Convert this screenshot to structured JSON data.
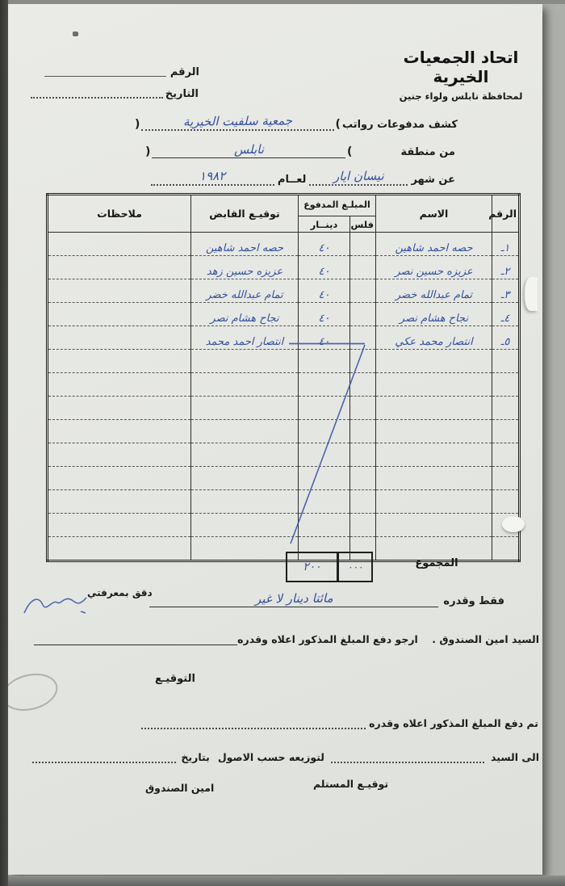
{
  "header": {
    "org_name": "اتحاد الجمعيات الخيرية",
    "org_region": "لمحافظة نابلس ولواء جنين",
    "number_label": "الرقم",
    "date_label": "التاريخ"
  },
  "form": {
    "payments_label": "كشف مدفوعات رواتب",
    "paren_open": "(",
    "paren_close": ")",
    "society_value": "جمعية سلفيت الخيرية",
    "area_label": "من منطقة",
    "area_value": "نابلس",
    "month_label": "عن شهر",
    "month_value": "نيسان ايار",
    "year_label": "لعــام",
    "year_value": "١٩٨٢"
  },
  "table": {
    "col_num": "الرقم",
    "col_name": "الاسم",
    "col_amount": "المبلـغ المدفوع",
    "col_fils": "فلس",
    "col_dinar": "دينــار",
    "col_signature": "توقيـع القابض",
    "col_notes": "ملاحظات",
    "rows": [
      {
        "num": "١ـ",
        "name": "حصه احمد شاهين",
        "fils": "",
        "dinar": "٤٠",
        "signature": "حصه احمد شاهين",
        "notes": ""
      },
      {
        "num": "٢ـ",
        "name": "عزيزه حسين نصر",
        "fils": "",
        "dinar": "٤٠",
        "signature": "عزيزه حسين زهد",
        "notes": ""
      },
      {
        "num": "٣ـ",
        "name": "تمام عبدالله خضر",
        "fils": "",
        "dinar": "٤٠",
        "signature": "تمام عبدالله خضر",
        "notes": ""
      },
      {
        "num": "٤ـ",
        "name": "نجاح هشام نصر",
        "fils": "",
        "dinar": "٤٠",
        "signature": "نجاح هشام نصر",
        "notes": ""
      },
      {
        "num": "٥ـ",
        "name": "انتصار محمد عكي",
        "fils": "",
        "dinar": "٤٠",
        "signature": "انتصار احمد محمد",
        "notes": ""
      },
      {
        "num": "",
        "name": "",
        "fils": "",
        "dinar": "",
        "signature": "",
        "notes": ""
      },
      {
        "num": "",
        "name": "",
        "fils": "",
        "dinar": "",
        "signature": "",
        "notes": ""
      },
      {
        "num": "",
        "name": "",
        "fils": "",
        "dinar": "",
        "signature": "",
        "notes": ""
      },
      {
        "num": "",
        "name": "",
        "fils": "",
        "dinar": "",
        "signature": "",
        "notes": ""
      },
      {
        "num": "",
        "name": "",
        "fils": "",
        "dinar": "",
        "signature": "",
        "notes": ""
      },
      {
        "num": "",
        "name": "",
        "fils": "",
        "dinar": "",
        "signature": "",
        "notes": ""
      },
      {
        "num": "",
        "name": "",
        "fils": "",
        "dinar": "",
        "signature": "",
        "notes": ""
      },
      {
        "num": "",
        "name": "",
        "fils": "",
        "dinar": "",
        "signature": "",
        "notes": ""
      },
      {
        "num": "",
        "name": "",
        "fils": "",
        "dinar": "",
        "signature": "",
        "notes": ""
      }
    ],
    "total_label": "المجموع",
    "total_fils": "٠٠٠",
    "total_dinar": "٢٠٠"
  },
  "footer": {
    "amount_words_label": "فقط وقدره",
    "amount_words_value": "مائتا دينار لا غير",
    "audited_label": "دقق بمعرفتي",
    "request_line": "السيد امين الصندوق .    ارجو دفع المبلغ المذكور اعلاه وقدره",
    "signature_label": "التوقيـع",
    "paid_line": "تم دفع المبلغ المذكور اعلاه وقدره",
    "to_label": "الى السيد",
    "distribute_label": "لتوزيعه حسب الاصول",
    "date2_label": "بتاريخ",
    "recipient_signature_label": "توقيـع المستلم",
    "treasurer_label": "امين الصندوق"
  },
  "ink": {
    "handwriting_color": "#34509e",
    "print_color": "#1c1c1c",
    "paper_color": "#e6e7e3"
  }
}
